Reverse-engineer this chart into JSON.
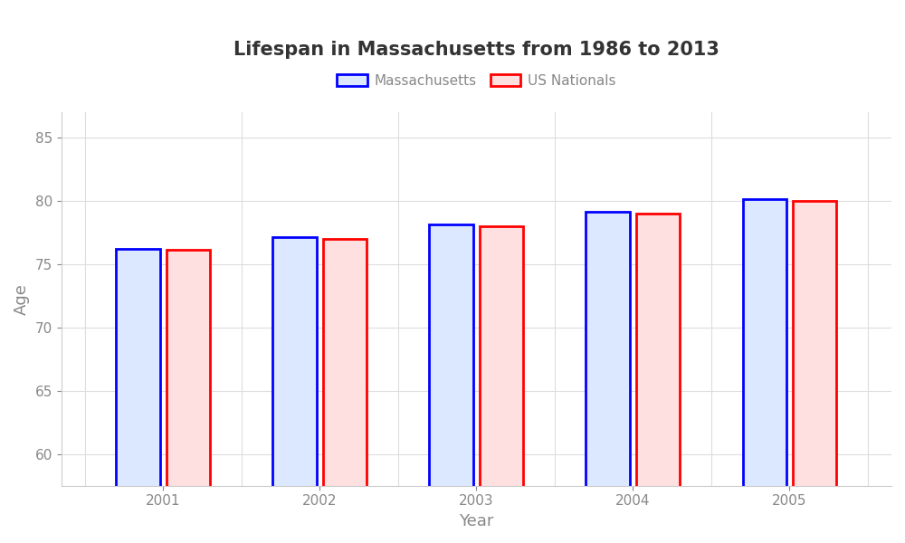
{
  "title": "Lifespan in Massachusetts from 1986 to 2013",
  "xlabel": "Year",
  "ylabel": "Age",
  "years": [
    2001,
    2002,
    2003,
    2004,
    2005
  ],
  "massachusetts": [
    76.2,
    77.1,
    78.1,
    79.1,
    80.1
  ],
  "us_nationals": [
    76.1,
    77.0,
    78.0,
    79.0,
    80.0
  ],
  "ylim": [
    57.5,
    87
  ],
  "yticks": [
    60,
    65,
    70,
    75,
    80,
    85
  ],
  "bar_width": 0.28,
  "ma_face_color": "#dce8ff",
  "ma_edge_color": "#0000ff",
  "us_face_color": "#ffe0e0",
  "us_edge_color": "#ff0000",
  "background_color": "#ffffff",
  "plot_bg_color": "#ffffff",
  "grid_color": "#dddddd",
  "title_fontsize": 15,
  "axis_label_fontsize": 13,
  "tick_fontsize": 11,
  "legend_fontsize": 11,
  "tick_color": "#888888",
  "title_color": "#333333"
}
